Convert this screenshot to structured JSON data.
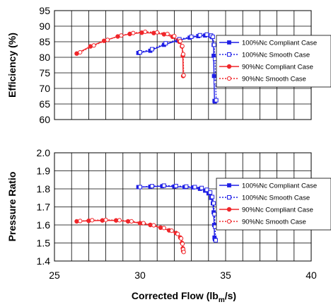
{
  "colors": {
    "blue": "#1f1fe6",
    "red": "#f0262a",
    "grid": "#000000"
  },
  "chart_data": [
    {
      "type": "line",
      "id": "efficiency",
      "title": "",
      "xlabel": "",
      "ylabel": "Efficiency (%)",
      "xlim": [
        25,
        40
      ],
      "ylim": [
        60,
        95
      ],
      "x_ticks": [
        "25",
        "30",
        "35",
        "40"
      ],
      "y_ticks": [
        "60",
        "65",
        "70",
        "75",
        "80",
        "85",
        "90",
        "95"
      ],
      "grid": true,
      "legend_position": "right",
      "series": [
        {
          "name": "100%Nc Compliant Case",
          "color": "blue",
          "marker": "filled-square",
          "line": "solid",
          "x": [
            29.9,
            30.6,
            31.4,
            32.2,
            32.9,
            33.4,
            33.8,
            34.1,
            34.2,
            34.3,
            34.3,
            34.32,
            34.35,
            34.37
          ],
          "y": [
            81.4,
            82.1,
            84.0,
            85.4,
            86.3,
            86.8,
            87.0,
            86.9,
            86.5,
            84.0,
            80.5,
            74.0,
            66.0,
            65.8
          ]
        },
        {
          "name": "100%Nc Smooth Case",
          "color": "blue",
          "marker": "open-square",
          "line": "dotted",
          "x": [
            30.0,
            30.7,
            31.5,
            32.3,
            33.0,
            33.5,
            33.9,
            34.15,
            34.25,
            34.33,
            34.38,
            34.42,
            34.45
          ],
          "y": [
            81.6,
            82.6,
            84.5,
            85.8,
            86.6,
            87.1,
            87.3,
            87.0,
            86.6,
            84.0,
            79.5,
            72.0,
            66.2
          ]
        },
        {
          "name": "90%Nc Compliant Case",
          "color": "red",
          "marker": "filled-circle",
          "line": "solid",
          "x": [
            26.3,
            27.1,
            27.9,
            28.7,
            29.4,
            30.1,
            30.8,
            31.4,
            31.9,
            32.3,
            32.45,
            32.5,
            32.52
          ],
          "y": [
            81.2,
            83.5,
            85.3,
            86.7,
            87.5,
            87.9,
            87.8,
            87.4,
            86.6,
            85.0,
            83.5,
            80.5,
            74.0
          ]
        },
        {
          "name": "90%Nc Smooth Case",
          "color": "red",
          "marker": "open-circle",
          "line": "dotted",
          "x": [
            26.5,
            27.3,
            28.1,
            28.9,
            29.6,
            30.3,
            31.0,
            31.6,
            32.0,
            32.35,
            32.47,
            32.52,
            32.55
          ],
          "y": [
            81.6,
            83.8,
            85.6,
            87.0,
            87.8,
            88.2,
            88.0,
            87.5,
            86.8,
            85.2,
            83.6,
            81.0,
            74.2
          ]
        }
      ]
    },
    {
      "type": "line",
      "id": "pressure",
      "title": "",
      "xlabel": "Corrected Flow (lbm/s)",
      "xlabel_parts": [
        "Corrected Flow (lb",
        "m",
        "/s)"
      ],
      "ylabel": "Pressure Ratio",
      "xlim": [
        25,
        40
      ],
      "ylim": [
        1.4,
        2.0
      ],
      "x_ticks": [
        "25",
        "30",
        "35",
        "40"
      ],
      "y_ticks": [
        "1.4",
        "1.5",
        "1.6",
        "1.7",
        "1.8",
        "1.9",
        "2.0"
      ],
      "grid": true,
      "legend_position": "right",
      "series": [
        {
          "name": "100%Nc Compliant Case",
          "color": "blue",
          "marker": "filled-square",
          "line": "solid",
          "x": [
            29.9,
            30.6,
            31.3,
            32.0,
            32.6,
            33.1,
            33.5,
            33.8,
            34.0,
            34.15,
            34.25,
            34.3,
            34.33,
            34.35,
            34.37
          ],
          "y": [
            1.81,
            1.812,
            1.815,
            1.813,
            1.81,
            1.808,
            1.8,
            1.79,
            1.775,
            1.75,
            1.72,
            1.67,
            1.6,
            1.53,
            1.52
          ]
        },
        {
          "name": "100%Nc Smooth Case",
          "color": "blue",
          "marker": "open-square",
          "line": "dotted",
          "x": [
            30.0,
            30.7,
            31.4,
            32.1,
            32.7,
            33.2,
            33.6,
            33.9,
            34.1,
            34.22,
            34.3,
            34.35,
            34.38,
            34.42
          ],
          "y": [
            1.81,
            1.815,
            1.818,
            1.816,
            1.813,
            1.81,
            1.805,
            1.795,
            1.78,
            1.755,
            1.72,
            1.66,
            1.59,
            1.515
          ]
        },
        {
          "name": "90%Nc Compliant Case",
          "color": "red",
          "marker": "filled-circle",
          "line": "solid",
          "x": [
            26.3,
            27.0,
            27.8,
            28.6,
            29.3,
            30.0,
            30.6,
            31.2,
            31.7,
            32.1,
            32.35,
            32.45,
            32.5,
            32.52
          ],
          "y": [
            1.62,
            1.623,
            1.625,
            1.625,
            1.62,
            1.61,
            1.6,
            1.585,
            1.57,
            1.555,
            1.53,
            1.5,
            1.47,
            1.455
          ]
        },
        {
          "name": "90%Nc Smooth Case",
          "color": "red",
          "marker": "open-circle",
          "line": "dotted",
          "x": [
            26.5,
            27.2,
            28.0,
            28.8,
            29.5,
            30.2,
            30.8,
            31.4,
            31.85,
            32.2,
            32.4,
            32.48,
            32.52,
            32.55
          ],
          "y": [
            1.622,
            1.626,
            1.628,
            1.626,
            1.62,
            1.61,
            1.598,
            1.583,
            1.568,
            1.55,
            1.525,
            1.495,
            1.465,
            1.45
          ]
        }
      ]
    }
  ]
}
